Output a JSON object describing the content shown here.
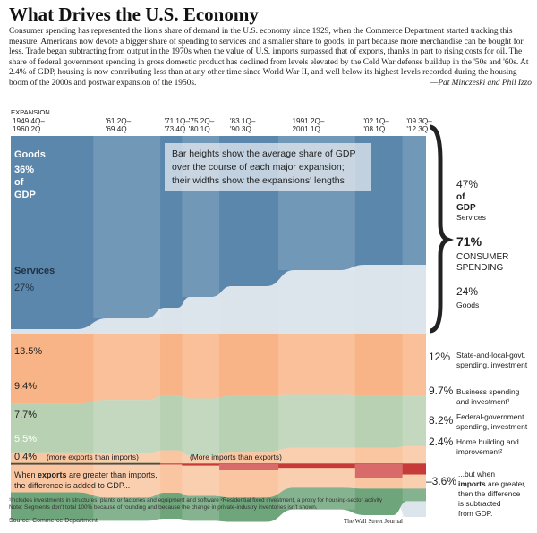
{
  "title": "What Drives the U.S. Economy",
  "intro": "Consumer spending has represented the lion's share of demand in the U.S. economy since 1929, when the Commerce Department started tracking this measure. Americans now devote a bigger share of spending to services and a smaller share to goods, in part because more merchandise can be bought for less. Trade began subtracting from output in the 1970s when the value of U.S. imports surpassed that of exports, thanks in part to rising costs for oil. The share of federal government spending in gross domestic product has declined from levels elevated by the Cold War defense buildup in the '50s and '60s. At 2.4% of GDP, housing is now contributing less than at any other time since World War II, and well below its highest levels recorded during the housing boom of the 2000s and postwar expansion of the 1950s.",
  "byline": "—Pat Minczeski and Phil Izzo",
  "note_box": "Bar heights show the average share of GDP over the course of each major expansion; their widths show the expansions' lengths",
  "footnotes": {
    "line1": "¹Includes investments in structures, plants or factories and equipment and software    ²Residential fixed investment, a proxy for housing-sector activity",
    "line2": "Note: Segments don't total 100% because of rounding and because the change in private-industry inventories isn't shown.",
    "source": "Source: Commerce Department",
    "credit": "The Wall Street Journal"
  },
  "chart_data": {
    "type": "area",
    "xlabel": "EXPANSION",
    "expansions": [
      {
        "label": "1949 4Q–1960 2Q",
        "length_quarters": 42
      },
      {
        "label": "'61 2Q–'69 4Q",
        "length_quarters": 34
      },
      {
        "label": "'71 1Q–'73 4Q",
        "length_quarters": 11
      },
      {
        "label": "'75 2Q–'80 1Q",
        "length_quarters": 19
      },
      {
        "label": "'83 1Q–'90 3Q",
        "length_quarters": 30
      },
      {
        "label": "1991 2Q–2001 1Q",
        "length_quarters": 39
      },
      {
        "label": "'02 1Q–'08 1Q",
        "length_quarters": 24
      },
      {
        "label": "'09 3Q–'12 3Q",
        "length_quarters": 12
      }
    ],
    "series": [
      {
        "name": "Goods",
        "color": "#5b87ad",
        "values": [
          36,
          34,
          32,
          30,
          28,
          25,
          24,
          24
        ]
      },
      {
        "name": "Services",
        "color": "#dbe3eb",
        "values": [
          27,
          29,
          31,
          33,
          36,
          40,
          43,
          47
        ]
      },
      {
        "name": "State-and-local-govt. spending, investment",
        "color": "#f8b487",
        "values": [
          13.5,
          12.8,
          12.0,
          12.5,
          12.0,
          11.8,
          12.0,
          12.0
        ]
      },
      {
        "name": "Business spending and investment",
        "color": "#b8d1b2",
        "values": [
          9.4,
          10.2,
          10.5,
          11.0,
          10.8,
          10.2,
          10.0,
          9.7
        ]
      },
      {
        "name": "Federal-government spending, investment",
        "color": "#f9c6a1",
        "values": [
          7.7,
          8.6,
          8.2,
          7.8,
          8.8,
          7.7,
          7.9,
          8.2
        ]
      },
      {
        "name": "Home building and improvement",
        "color": "#6fa57a",
        "values": [
          5.5,
          4.5,
          5.0,
          4.8,
          4.7,
          4.2,
          5.1,
          2.4
        ]
      },
      {
        "name": "Net exports",
        "values": [
          0.4,
          0.4,
          -0.1,
          -0.5,
          -2.0,
          -1.3,
          -4.8,
          -3.6
        ]
      }
    ],
    "labels": {
      "goods_start": "Goods",
      "goods_start_value": "36% of GDP",
      "services_start": "Services",
      "services_start_value": "27%",
      "state_start_value": "13.5%",
      "business_start_value": "9.4%",
      "federal_start_value": "7.7%",
      "home_start_value": "5.5%",
      "exports_start_value": "0.4%",
      "exports_start_text": "(more exports than imports)",
      "imports_text": "(More imports than exports)",
      "exports_note_a": "When",
      "exports_note_b": "exports",
      "exports_note_c": "are greater than imports,",
      "exports_note_d": "the difference is added to GDP...",
      "end_services_value": "47%",
      "end_services_of": "of",
      "end_services_gdp": "GDP",
      "end_services_label": "Services",
      "end_consumer_value": "71%",
      "end_consumer_label1": "CONSUMER",
      "end_consumer_label2": "SPENDING",
      "end_goods_value": "24%",
      "end_goods_label": "Goods",
      "end_state_value": "12%",
      "end_state_label1": "State-and-local-govt.",
      "end_state_label2": "spending, investment",
      "end_business_value": "9.7%",
      "end_business_label1": "Business spending",
      "end_business_label2": "and investment¹",
      "end_federal_value": "8.2%",
      "end_federal_label1": "Federal-government",
      "end_federal_label2": "spending, investment",
      "end_home_value": "2.4%",
      "end_home_label1": "Home building and",
      "end_home_label2": "improvement²",
      "end_net_value": "–3.6%",
      "end_net_label1": "...but when",
      "end_net_label2a": "imports",
      "end_net_label2b": "are greater,",
      "end_net_label3": "then the difference",
      "end_net_label4": "is subtracted",
      "end_net_label5": "from GDP."
    }
  }
}
